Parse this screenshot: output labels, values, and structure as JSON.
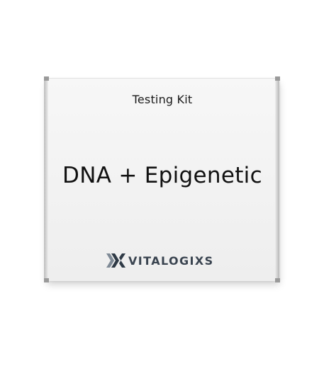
{
  "box": {
    "kit_label": "Testing Kit",
    "product_title": "DNA + Epigenetic",
    "brand_name": "VITALOGIXS",
    "brand_mark_icon": "vx-logo-mark",
    "colors": {
      "box_face": "#f3f3f3",
      "title_text": "#111111",
      "brand_dark": "#2f3a46",
      "brand_light": "#7f8a96"
    }
  }
}
